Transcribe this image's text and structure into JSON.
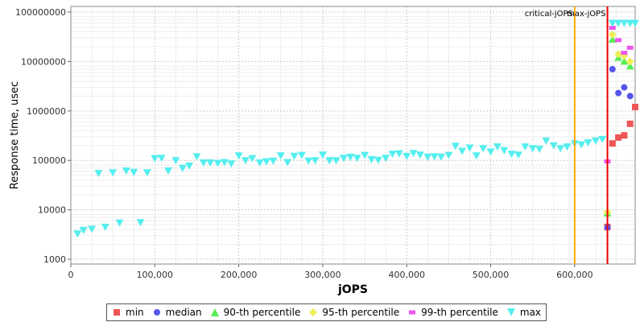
{
  "chart_data": {
    "type": "scatter",
    "xlabel": "jOPS",
    "ylabel": "Response time, usec",
    "xlim": [
      0,
      672000
    ],
    "ylim": [
      800,
      130000000
    ],
    "y_scale": "log",
    "grid": true,
    "legend_position": "bottom",
    "x_ticks": [
      0,
      100000,
      200000,
      300000,
      400000,
      500000,
      600000
    ],
    "x_tick_labels": [
      "0",
      "100,000",
      "200,000",
      "300,000",
      "400,000",
      "500,000",
      "600,000"
    ],
    "y_ticks": [
      1000,
      10000,
      100000,
      1000000,
      10000000,
      100000000
    ],
    "y_tick_labels": [
      "1000",
      "10000",
      "100000",
      "1000000",
      "10000000",
      "100000000"
    ],
    "vertical_lines": [
      {
        "label": "critical-jOPS",
        "x": 600000,
        "color": "#FFAA00"
      },
      {
        "label": "max-jOPS",
        "x": 639000,
        "color": "#EE0000"
      }
    ],
    "series": [
      {
        "name": "min",
        "color": "#EE5555",
        "marker": "square",
        "points": [
          [
            639000,
            4500
          ],
          [
            645000,
            220000
          ],
          [
            652000,
            290000
          ],
          [
            659000,
            320000
          ],
          [
            666000,
            550000
          ],
          [
            672000,
            1200000
          ]
        ]
      },
      {
        "name": "median",
        "color": "#5555EE",
        "marker": "circle",
        "points": [
          [
            639000,
            4400
          ],
          [
            645000,
            7000000
          ],
          [
            652000,
            2300000
          ],
          [
            659000,
            3000000
          ],
          [
            666000,
            2000000
          ]
        ]
      },
      {
        "name": "90-th percentile",
        "color": "#55EE55",
        "marker": "triangle-up",
        "points": [
          [
            639000,
            8500
          ],
          [
            645000,
            28000000
          ],
          [
            652000,
            12000000
          ],
          [
            659000,
            10000000
          ],
          [
            666000,
            8000000
          ]
        ]
      },
      {
        "name": "95-th percentile",
        "color": "#EEEE55",
        "marker": "diamond",
        "points": [
          [
            639000,
            9000
          ],
          [
            645000,
            35000000
          ],
          [
            652000,
            14000000
          ],
          [
            659000,
            13000000
          ],
          [
            666000,
            10000000
          ]
        ]
      },
      {
        "name": "99-th percentile",
        "color": "#EE55EE",
        "marker": "square-small",
        "points": [
          [
            639000,
            95000
          ],
          [
            645000,
            48000000
          ],
          [
            652000,
            27000000
          ],
          [
            659000,
            15000000
          ],
          [
            666000,
            19000000
          ]
        ]
      },
      {
        "name": "max",
        "color": "#55EEEE",
        "marker": "triangle-down",
        "points": [
          [
            8000,
            3300
          ],
          [
            15000,
            3900
          ],
          [
            25000,
            4100
          ],
          [
            33000,
            55000
          ],
          [
            41000,
            4500
          ],
          [
            50000,
            57000
          ],
          [
            58000,
            5500
          ],
          [
            66000,
            62000
          ],
          [
            75000,
            58000
          ],
          [
            83000,
            5600
          ],
          [
            91000,
            57000
          ],
          [
            100000,
            110000
          ],
          [
            108000,
            112000
          ],
          [
            116000,
            62000
          ],
          [
            125000,
            100000
          ],
          [
            133000,
            70000
          ],
          [
            141000,
            78000
          ],
          [
            150000,
            120000
          ],
          [
            158000,
            90000
          ],
          [
            166000,
            90000
          ],
          [
            175000,
            88000
          ],
          [
            183000,
            92000
          ],
          [
            191000,
            86000
          ],
          [
            200000,
            125000
          ],
          [
            208000,
            100000
          ],
          [
            216000,
            110000
          ],
          [
            225000,
            90000
          ],
          [
            233000,
            95000
          ],
          [
            241000,
            98000
          ],
          [
            250000,
            125000
          ],
          [
            258000,
            92000
          ],
          [
            266000,
            122000
          ],
          [
            275000,
            128000
          ],
          [
            283000,
            98000
          ],
          [
            291000,
            100000
          ],
          [
            300000,
            130000
          ],
          [
            308000,
            100000
          ],
          [
            316000,
            100000
          ],
          [
            325000,
            112000
          ],
          [
            333000,
            118000
          ],
          [
            341000,
            112000
          ],
          [
            350000,
            128000
          ],
          [
            358000,
            105000
          ],
          [
            366000,
            102000
          ],
          [
            375000,
            112000
          ],
          [
            383000,
            135000
          ],
          [
            391000,
            138000
          ],
          [
            400000,
            122000
          ],
          [
            408000,
            140000
          ],
          [
            416000,
            130000
          ],
          [
            425000,
            118000
          ],
          [
            433000,
            120000
          ],
          [
            441000,
            118000
          ],
          [
            450000,
            128000
          ],
          [
            458000,
            195000
          ],
          [
            466000,
            155000
          ],
          [
            475000,
            180000
          ],
          [
            483000,
            125000
          ],
          [
            491000,
            175000
          ],
          [
            500000,
            150000
          ],
          [
            508000,
            190000
          ],
          [
            516000,
            160000
          ],
          [
            525000,
            135000
          ],
          [
            533000,
            130000
          ],
          [
            541000,
            190000
          ],
          [
            550000,
            175000
          ],
          [
            558000,
            170000
          ],
          [
            566000,
            250000
          ],
          [
            575000,
            200000
          ],
          [
            583000,
            175000
          ],
          [
            591000,
            190000
          ],
          [
            600000,
            220000
          ],
          [
            608000,
            210000
          ],
          [
            616000,
            230000
          ],
          [
            625000,
            250000
          ],
          [
            633000,
            270000
          ],
          [
            645000,
            60000000
          ],
          [
            652000,
            60000000
          ],
          [
            659000,
            60000000
          ],
          [
            666000,
            60000000
          ],
          [
            672000,
            60000000
          ]
        ]
      }
    ]
  }
}
